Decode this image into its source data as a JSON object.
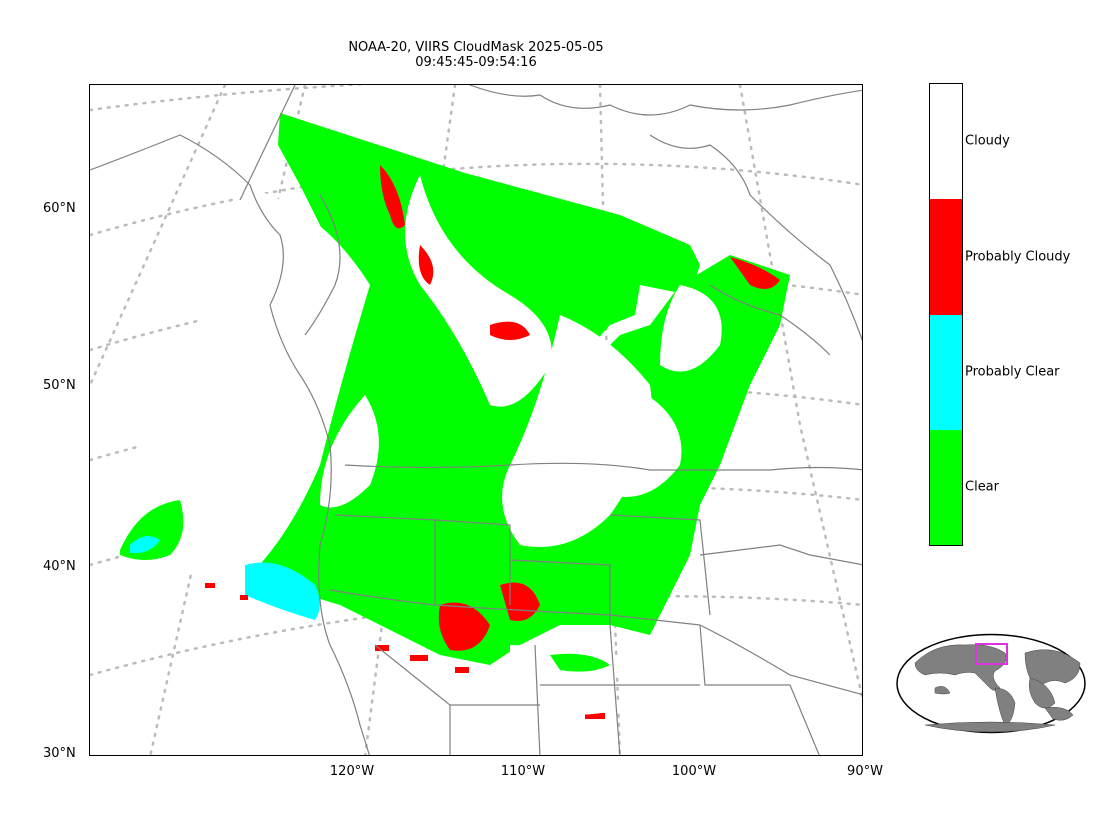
{
  "title": {
    "line1": "NOAA-20, VIIRS CloudMask 2025-05-05",
    "line2": "09:45:45-09:54:16"
  },
  "axes": {
    "lat_labels": [
      "60°N",
      "50°N",
      "40°N",
      "30°N"
    ],
    "lon_labels": [
      "120°W",
      "110°W",
      "100°W",
      "90°W"
    ]
  },
  "colorbar": {
    "classes": [
      {
        "label": "Cloudy",
        "color": "#ffffff"
      },
      {
        "label": "Probably Cloudy",
        "color": "#ff0000"
      },
      {
        "label": "Probably Clear",
        "color": "#00ffff"
      },
      {
        "label": "Clear",
        "color": "#00ff00"
      }
    ]
  },
  "colors": {
    "clear": "#00ff00",
    "probably_clear": "#00ffff",
    "probably_cloudy": "#ff0000",
    "cloudy": "#ffffff",
    "coastline": "#808080",
    "graticule": "#bbbbbb",
    "inset_land": "#808080",
    "inset_box": "#dd33dd"
  }
}
